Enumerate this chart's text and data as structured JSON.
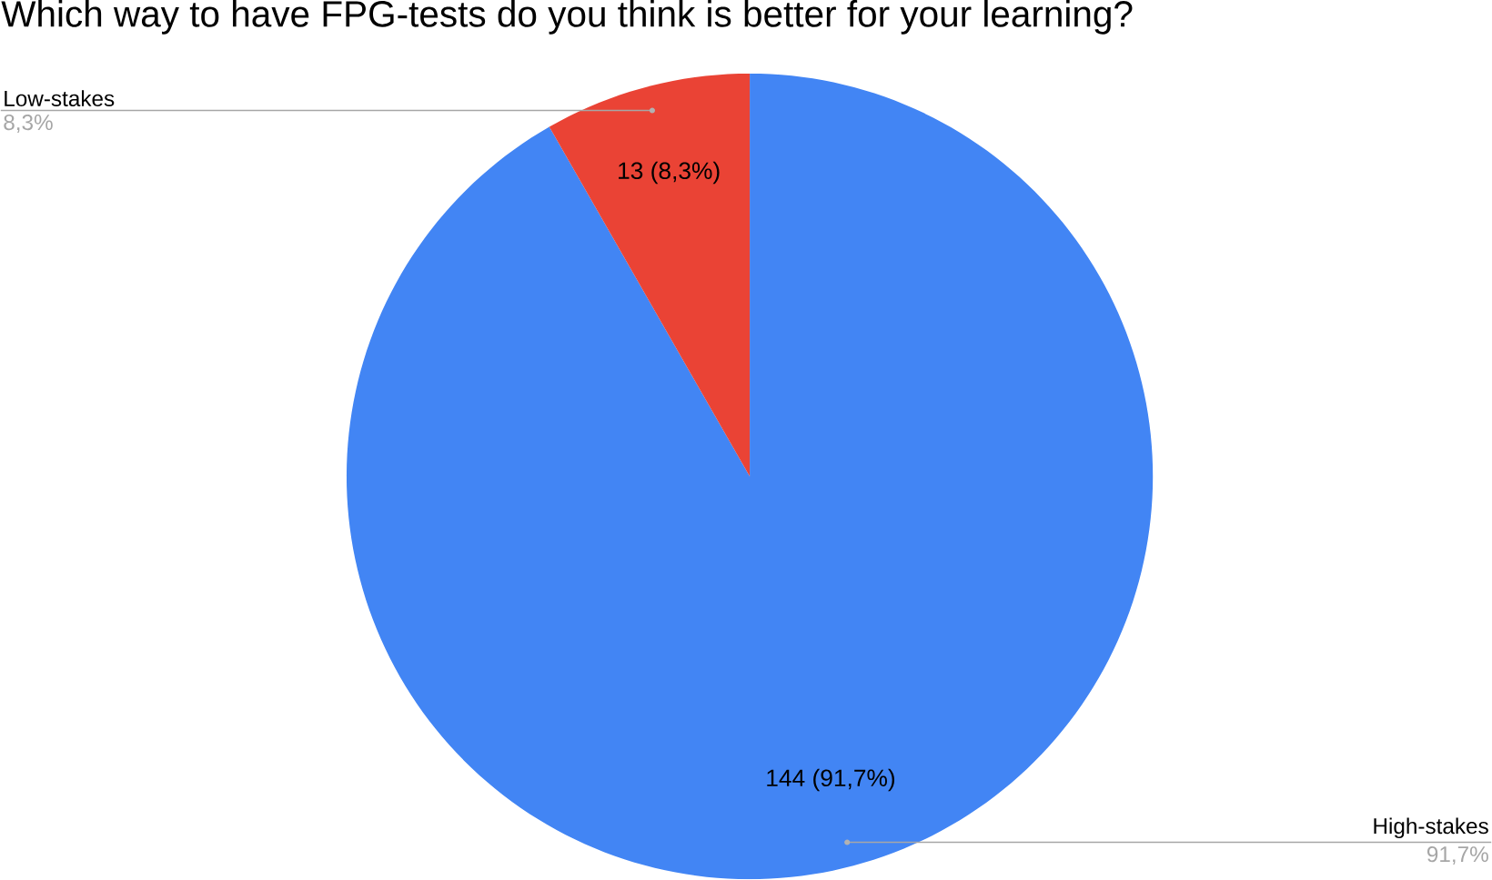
{
  "chart_data": {
    "type": "pie",
    "title": "Which way to have FPG-tests do you think is better for your learning?",
    "categories": [
      "High-stakes",
      "Low-stakes"
    ],
    "values": [
      144,
      13
    ],
    "colors": [
      "#4285f4",
      "#ea4335"
    ],
    "value_labels": [
      "144 (91,7%)",
      "13 (8,3%)"
    ],
    "annotations": [
      "91,7%",
      "8,3%"
    ]
  }
}
